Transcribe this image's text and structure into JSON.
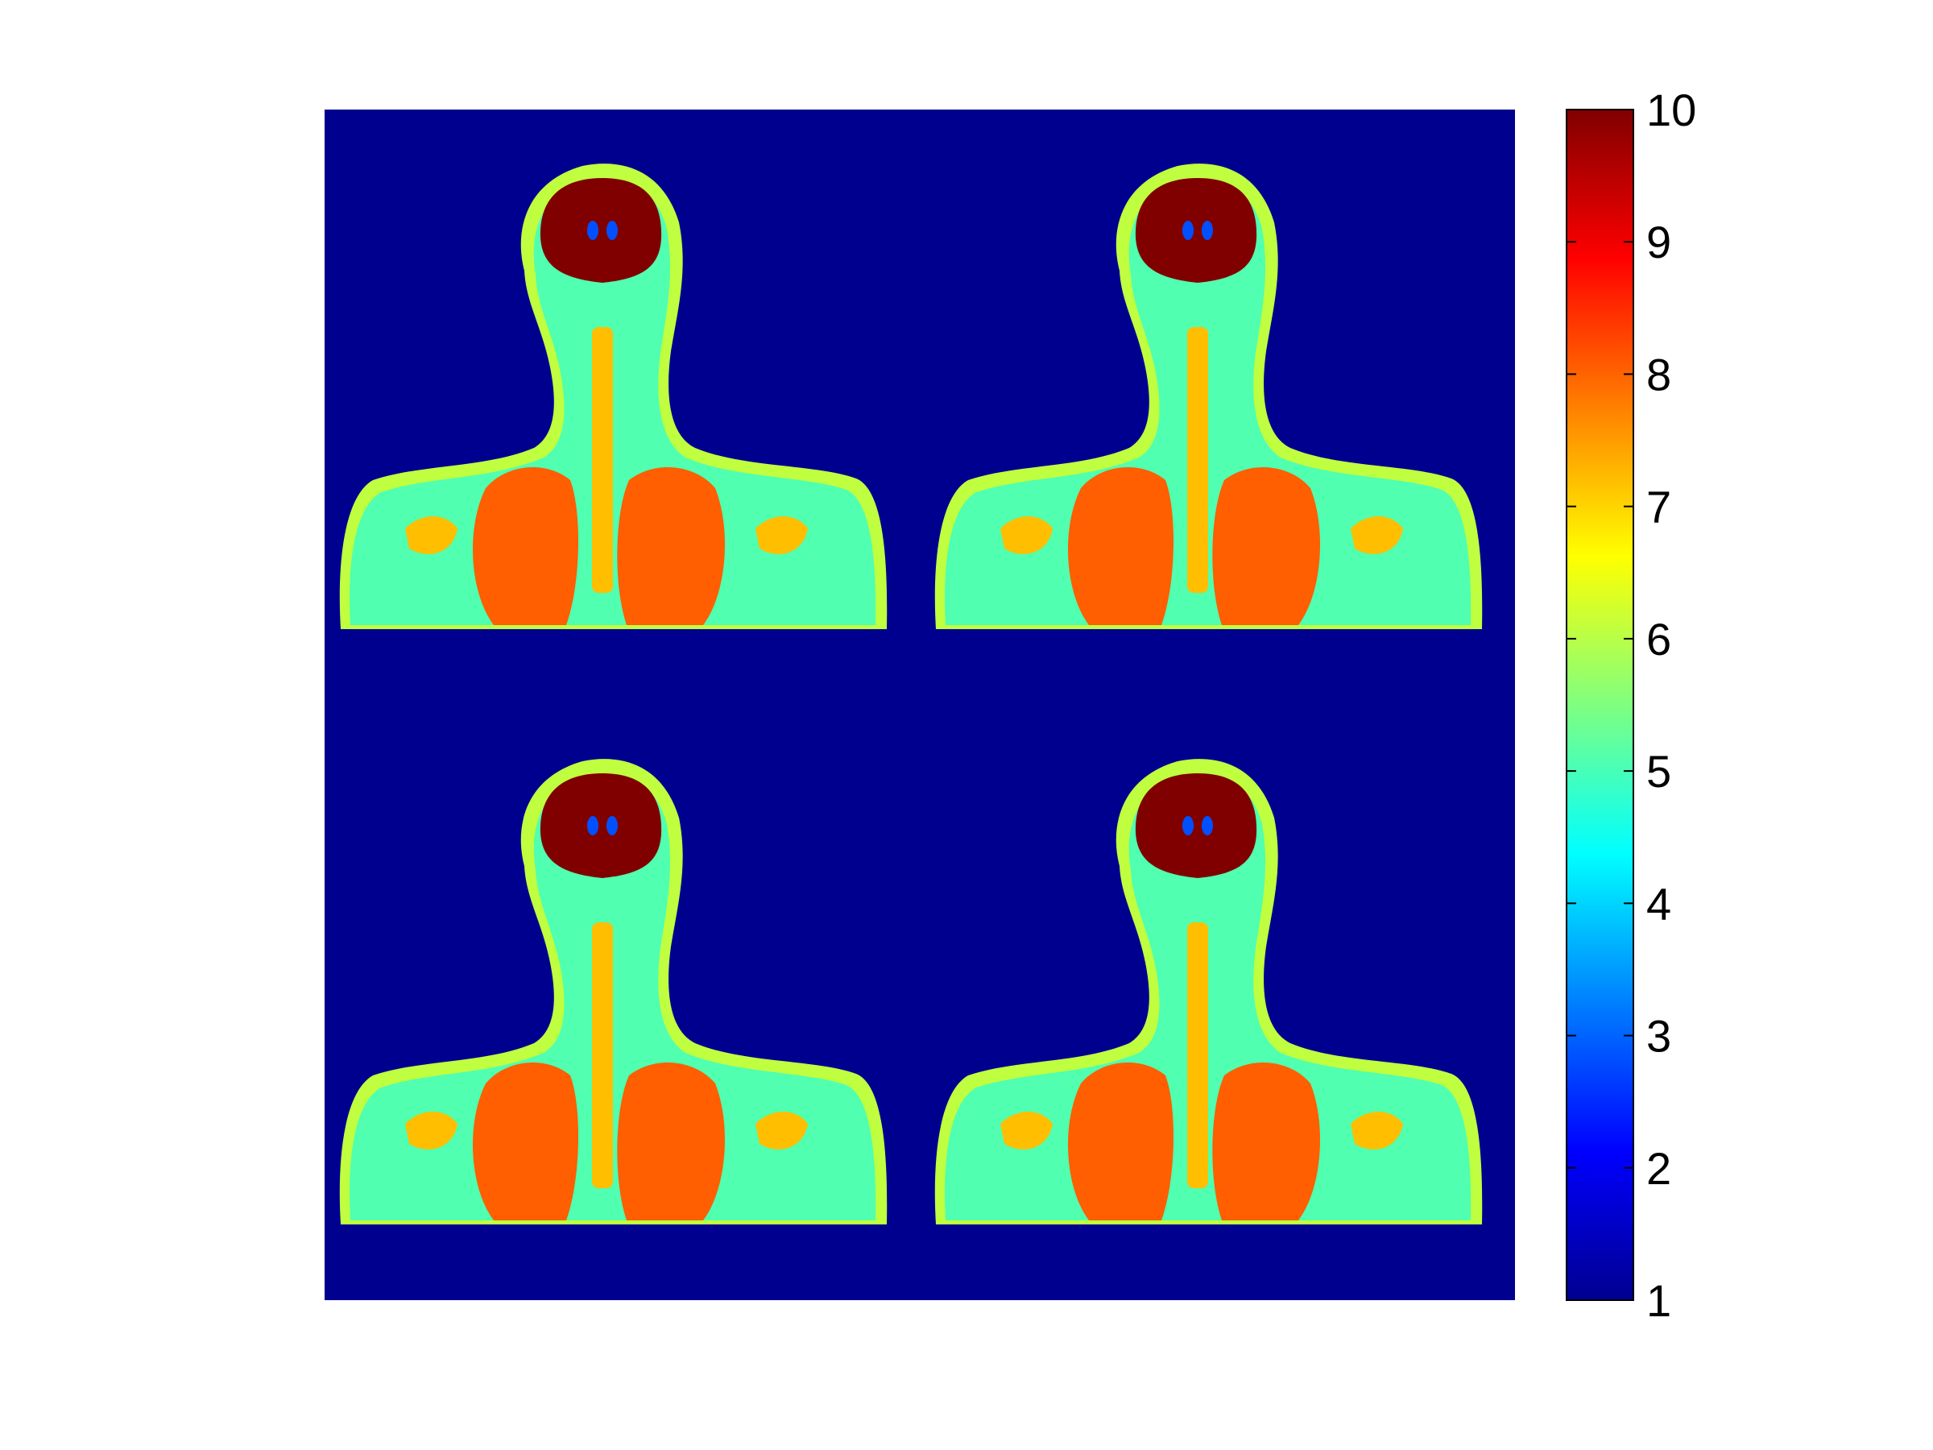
{
  "figure": {
    "colormap": "jet",
    "background_value": 1,
    "panel_count": 4,
    "panel_labels": [
      "top-left",
      "top-right",
      "bottom-left",
      "bottom-right"
    ]
  },
  "colorbar": {
    "min": 1,
    "max": 10,
    "ticks": [
      1,
      2,
      3,
      4,
      5,
      6,
      7,
      8,
      9,
      10
    ],
    "tick_labels": [
      "1",
      "2",
      "3",
      "4",
      "5",
      "6",
      "7",
      "8",
      "9",
      "10"
    ]
  },
  "colors": {
    "background": "#00008f",
    "brain": "#800000",
    "lung": "#ff5f00",
    "bone": "#ffbf00",
    "skin": "#c0ff3f",
    "tissue": "#50ffaf",
    "fluid": "#1faeff",
    "csf": "#0050ff",
    "cyan": "#00e0ff"
  }
}
